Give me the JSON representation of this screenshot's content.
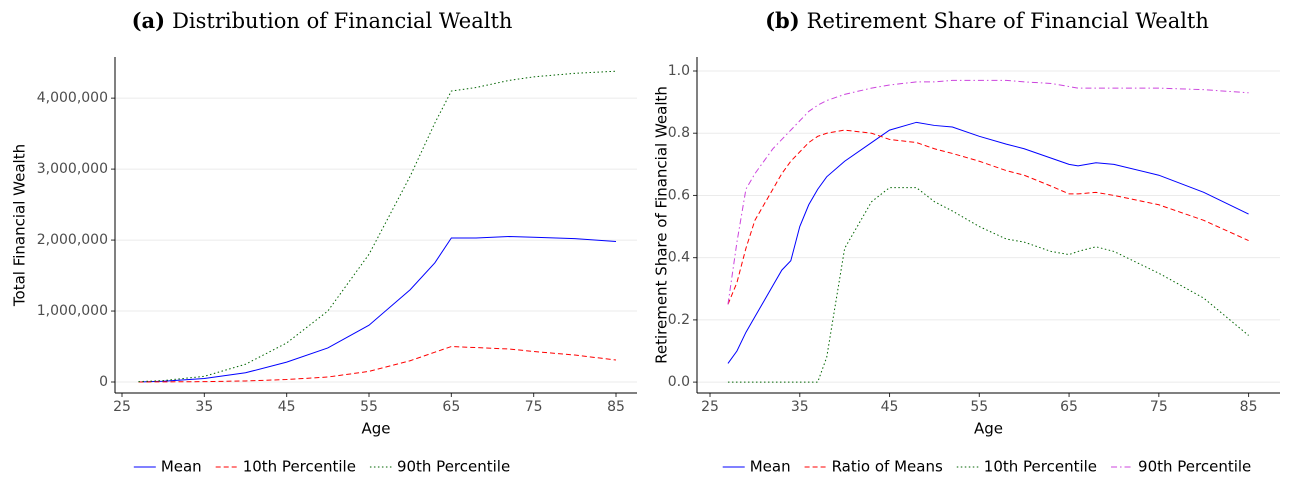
{
  "chart_data": [
    {
      "type": "line",
      "panel_label": "(a)",
      "title": "Distribution of Financial Wealth",
      "x_label": "Age",
      "y_label": "Total Financial Wealth",
      "x": [
        27,
        30,
        35,
        40,
        45,
        50,
        55,
        60,
        63,
        65,
        68,
        72,
        75,
        80,
        85
      ],
      "series": [
        {
          "name": "Mean",
          "color": "#0000ff",
          "dash": "solid",
          "values": [
            0,
            10000,
            50000,
            130000,
            280000,
            480000,
            800000,
            1300000,
            1680000,
            2030000,
            2030000,
            2050000,
            2040000,
            2020000,
            1980000
          ]
        },
        {
          "name": "10th Percentile",
          "color": "#ff0000",
          "dash": "dashed",
          "values": [
            0,
            2000,
            5000,
            15000,
            35000,
            70000,
            150000,
            300000,
            420000,
            500000,
            485000,
            465000,
            430000,
            380000,
            310000
          ]
        },
        {
          "name": "90th Percentile",
          "color": "#006400",
          "dash": "dotted",
          "values": [
            5000,
            20000,
            80000,
            250000,
            550000,
            1000000,
            1800000,
            2900000,
            3650000,
            4100000,
            4150000,
            4250000,
            4300000,
            4350000,
            4380000
          ]
        }
      ],
      "xlim": [
        24.15,
        87.55
      ],
      "xticks": [
        25,
        35,
        45,
        55,
        65,
        75,
        85
      ],
      "ylim": [
        -155000,
        4580000
      ],
      "yticks": [
        0,
        {
          "value": 1000000,
          "label": "1,000,000"
        },
        {
          "value": 2000000,
          "label": "2,000,000"
        },
        {
          "value": 3000000,
          "label": "3,000,000"
        },
        {
          "value": 4000000,
          "label": "4,000,000"
        }
      ],
      "grid": true,
      "legend": "bottom"
    },
    {
      "type": "line",
      "panel_label": "(b)",
      "title": "Retirement Share of Financial Wealth",
      "x_label": "Age",
      "y_label": "Retirement Share of Financial Wealth",
      "x": [
        27,
        28,
        29,
        30,
        32,
        33,
        34,
        35,
        36,
        37,
        38,
        40,
        43,
        45,
        48,
        50,
        52,
        55,
        58,
        60,
        63,
        65,
        66,
        68,
        70,
        75,
        80,
        85
      ],
      "series": [
        {
          "name": "Mean",
          "color": "#0000ff",
          "dash": "solid",
          "values": [
            0.06,
            0.1,
            0.16,
            0.21,
            0.31,
            0.36,
            0.39,
            0.5,
            0.57,
            0.62,
            0.66,
            0.71,
            0.77,
            0.81,
            0.835,
            0.825,
            0.82,
            0.79,
            0.765,
            0.75,
            0.72,
            0.7,
            0.695,
            0.705,
            0.7,
            0.665,
            0.61,
            0.54
          ]
        },
        {
          "name": "Ratio of Means",
          "color": "#ff0000",
          "dash": "dashed",
          "values": [
            0.25,
            0.32,
            0.43,
            0.52,
            0.62,
            0.67,
            0.71,
            0.74,
            0.77,
            0.79,
            0.8,
            0.81,
            0.8,
            0.78,
            0.77,
            0.75,
            0.735,
            0.71,
            0.68,
            0.665,
            0.63,
            0.605,
            0.605,
            0.61,
            0.6,
            0.57,
            0.52,
            0.455
          ]
        },
        {
          "name": "10th Percentile",
          "color": "#006400",
          "dash": "dotted",
          "values": [
            0,
            0,
            0,
            0,
            0,
            0,
            0,
            0,
            0,
            0,
            0.08,
            0.43,
            0.58,
            0.625,
            0.625,
            0.58,
            0.55,
            0.5,
            0.46,
            0.45,
            0.42,
            0.41,
            0.42,
            0.435,
            0.42,
            0.35,
            0.27,
            0.15
          ]
        },
        {
          "name": "90th Percentile",
          "color": "#cc44dd",
          "dash": "dashdot",
          "values": [
            0.25,
            0.45,
            0.62,
            0.67,
            0.75,
            0.78,
            0.81,
            0.84,
            0.87,
            0.89,
            0.905,
            0.925,
            0.945,
            0.955,
            0.965,
            0.965,
            0.97,
            0.97,
            0.97,
            0.965,
            0.96,
            0.95,
            0.945,
            0.945,
            0.945,
            0.945,
            0.94,
            0.93
          ]
        }
      ],
      "xlim": [
        23.55,
        88.5
      ],
      "xticks": [
        25,
        35,
        45,
        55,
        65,
        75,
        85
      ],
      "ylim": [
        -0.035,
        1.045
      ],
      "yticks": [
        {
          "value": 0,
          "label": "0.0"
        },
        0.2,
        0.4,
        0.6,
        0.8,
        {
          "value": 1,
          "label": "1.0"
        }
      ],
      "grid": true,
      "legend": "bottom"
    }
  ]
}
